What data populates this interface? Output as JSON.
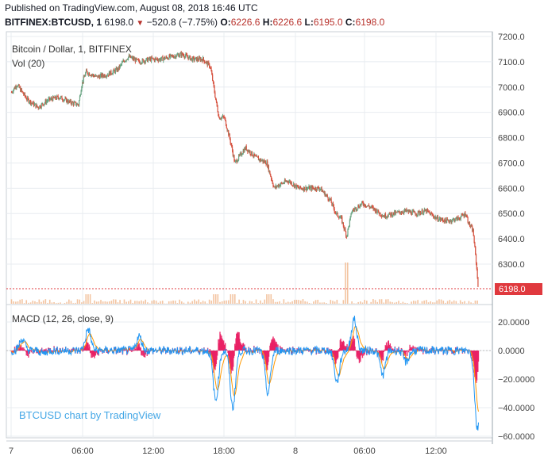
{
  "header": {
    "published": "Published on TradingView.com, August 08, 2018 16:46 UTC",
    "symbol": "BITFINEX:BTCUSD, 1",
    "price": "6198.0",
    "change": "−520.8 (−7.75%)",
    "o_label": "O:",
    "o": "6226.6",
    "h_label": "H:",
    "h": "6226.6",
    "l_label": "L:",
    "l": "6195.0",
    "c_label": "C:",
    "c": "6198.0"
  },
  "colors": {
    "up": "#6ba583",
    "down": "#d75442",
    "macd": "#2196f3",
    "signal": "#ff9800",
    "hist_pos": "#26a69a",
    "hist_neg": "#e91e63",
    "last_price": "#e0393e",
    "volume": "#f0b58a",
    "grid": "#e8ecf0",
    "axis_text": "#444444"
  },
  "chart_data": [
    {
      "type": "candlestick",
      "title": "Bitcoin / Dollar, 1, BITFINEX",
      "indicator": "Vol (20)",
      "last_price_label": "6198.0",
      "yticks": [
        6300,
        6400,
        6500,
        6600,
        6700,
        6800,
        6900,
        7000,
        7100,
        7200
      ],
      "ylim": [
        6195,
        7210
      ],
      "xticks": [
        "7",
        "06:00",
        "12:00",
        "18:00",
        "8",
        "06:00",
        "12:00"
      ],
      "price_path": [
        [
          0,
          6980
        ],
        [
          0.5,
          7010
        ],
        [
          1.5,
          6950
        ],
        [
          2.5,
          6920
        ],
        [
          3.5,
          6950
        ],
        [
          4.5,
          6960
        ],
        [
          5.5,
          6940
        ],
        [
          6.3,
          6930
        ],
        [
          6.6,
          7010
        ],
        [
          7,
          7060
        ],
        [
          8,
          7040
        ],
        [
          9,
          7050
        ],
        [
          10,
          7070
        ],
        [
          10.5,
          7100
        ],
        [
          11,
          7120
        ],
        [
          12,
          7100
        ],
        [
          13,
          7110
        ],
        [
          14,
          7110
        ],
        [
          15,
          7120
        ],
        [
          16,
          7130
        ],
        [
          17,
          7110
        ],
        [
          18,
          7110
        ],
        [
          18.7,
          7080
        ],
        [
          19.2,
          6950
        ],
        [
          19.5,
          6880
        ],
        [
          20,
          6880
        ],
        [
          20.5,
          6800
        ],
        [
          21,
          6700
        ],
        [
          22,
          6760
        ],
        [
          23,
          6720
        ],
        [
          24,
          6700
        ],
        [
          24.7,
          6600
        ],
        [
          25,
          6610
        ],
        [
          26,
          6630
        ],
        [
          27,
          6600
        ],
        [
          28,
          6600
        ],
        [
          29,
          6600
        ],
        [
          30,
          6550
        ],
        [
          30.5,
          6500
        ],
        [
          31,
          6480
        ],
        [
          31.5,
          6410
        ],
        [
          32,
          6510
        ],
        [
          33,
          6540
        ],
        [
          34,
          6520
        ],
        [
          35,
          6490
        ],
        [
          36,
          6500
        ],
        [
          37,
          6510
        ],
        [
          38,
          6500
        ],
        [
          39,
          6510
        ],
        [
          40,
          6480
        ],
        [
          41,
          6470
        ],
        [
          42,
          6480
        ],
        [
          42.7,
          6500
        ],
        [
          43,
          6460
        ],
        [
          43.4,
          6430
        ],
        [
          43.7,
          6300
        ],
        [
          43.9,
          6198
        ]
      ]
    },
    {
      "type": "line",
      "title": "MACD (12, 26, close, 9)",
      "yticks": [
        20,
        0,
        -20,
        -40,
        -60
      ],
      "ytick_labels": [
        "20.0000",
        "0.0000",
        "−20.0000",
        "−40.0000",
        "−60.0000"
      ],
      "ylim": [
        -60,
        25
      ],
      "events": [
        [
          1,
          8
        ],
        [
          3,
          -2
        ],
        [
          7.2,
          15
        ],
        [
          12,
          10
        ],
        [
          19.2,
          -35
        ],
        [
          20.8,
          -40
        ],
        [
          24.1,
          -30
        ],
        [
          30.6,
          -22
        ],
        [
          32.2,
          22
        ],
        [
          34.9,
          -17
        ],
        [
          37.1,
          -8
        ],
        [
          43.8,
          -55
        ]
      ]
    }
  ],
  "branding": "BTCUSD chart by TradingView"
}
